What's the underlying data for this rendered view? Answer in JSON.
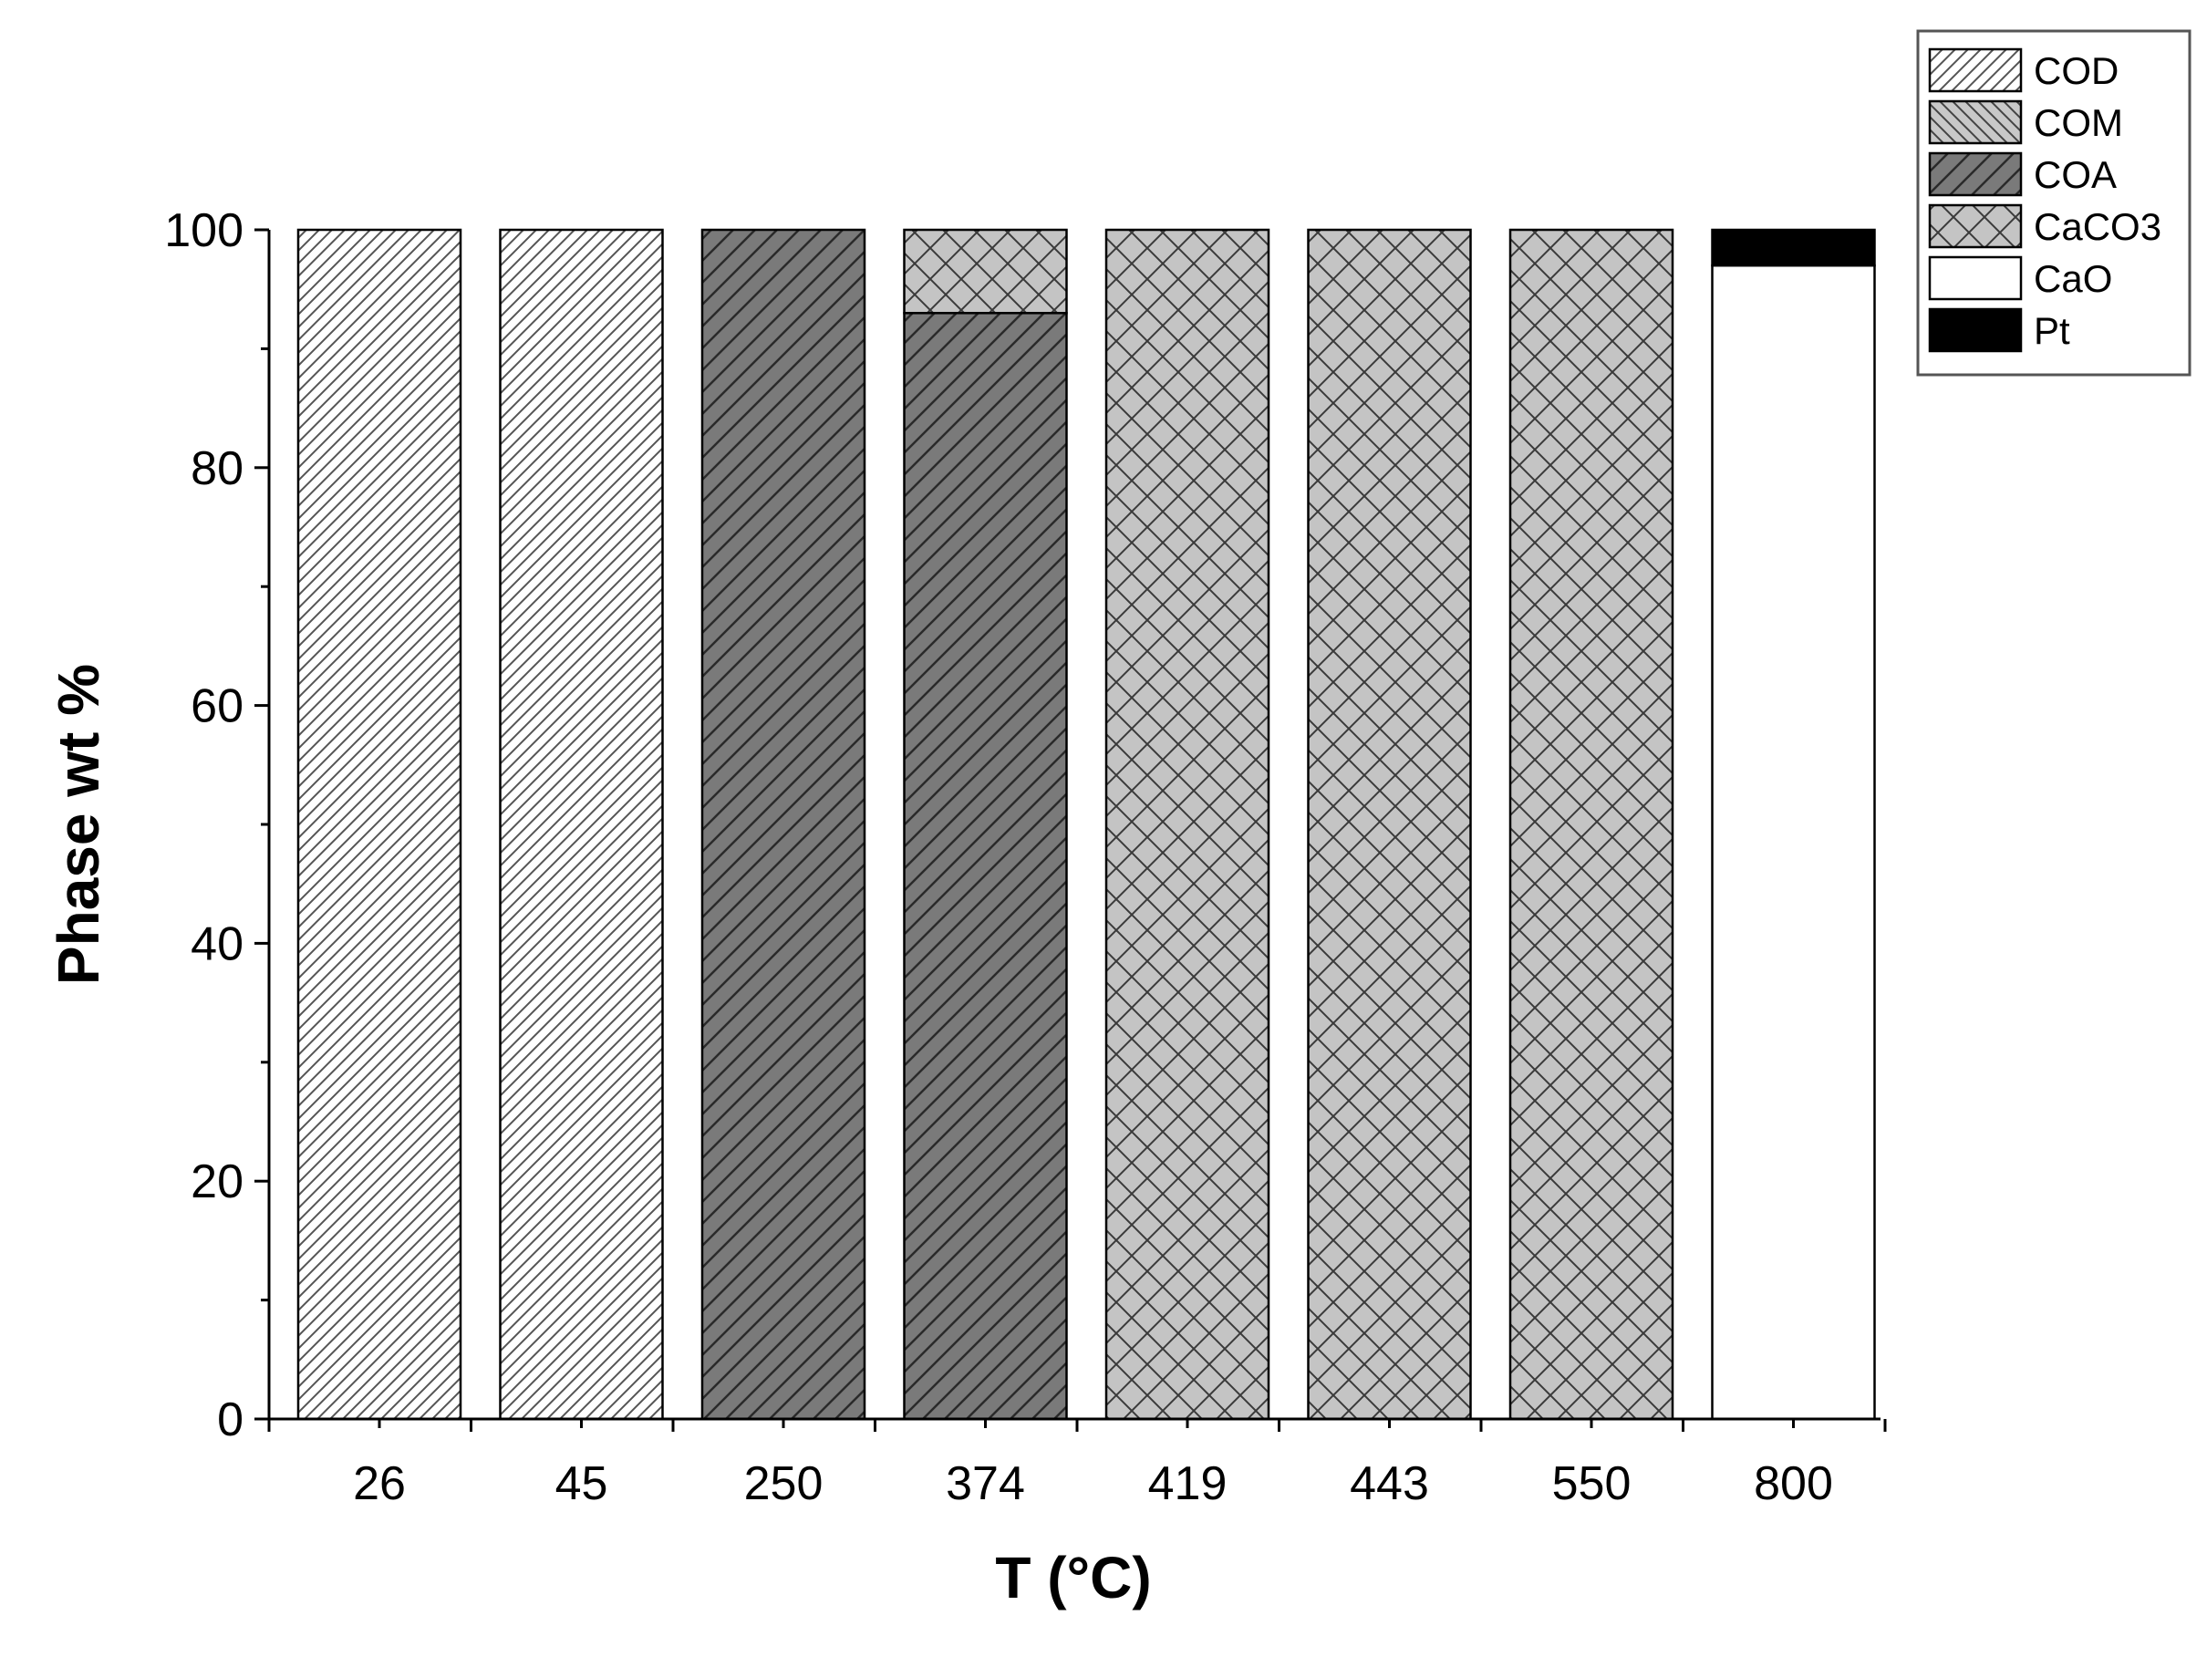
{
  "chart_data": {
    "type": "bar",
    "stacked": true,
    "title": "",
    "xlabel": "T (°C)",
    "ylabel": "Phase wt %",
    "ylim": [
      0,
      100
    ],
    "y_ticks": [
      0,
      20,
      40,
      60,
      80,
      100
    ],
    "categories": [
      "26",
      "45",
      "250",
      "374",
      "419",
      "443",
      "550",
      "800"
    ],
    "series": [
      {
        "name": "COD",
        "pattern": "diag-fwd-light",
        "fill": "#ffffff",
        "values": [
          100,
          100,
          0,
          0,
          0,
          0,
          0,
          0
        ]
      },
      {
        "name": "COM",
        "pattern": "diag-back-grey",
        "fill": "#c8c8c8",
        "values": [
          0,
          0,
          0,
          0,
          0,
          0,
          0,
          0
        ]
      },
      {
        "name": "COA",
        "pattern": "diag-fwd-dark",
        "fill": "#7a7a7a",
        "values": [
          0,
          0,
          100,
          93,
          0,
          0,
          0,
          0
        ]
      },
      {
        "name": "CaCO3",
        "pattern": "crosshatch-grey",
        "fill": "#c4c4c4",
        "values": [
          0,
          0,
          0,
          7,
          100,
          100,
          100,
          0
        ]
      },
      {
        "name": "CaO",
        "pattern": "solid-white",
        "fill": "#ffffff",
        "values": [
          0,
          0,
          0,
          0,
          0,
          0,
          0,
          97
        ]
      },
      {
        "name": "Pt",
        "pattern": "solid-black",
        "fill": "#000000",
        "values": [
          0,
          0,
          0,
          0,
          0,
          0,
          0,
          3
        ]
      }
    ],
    "grid": false,
    "legend_position": "top-right"
  }
}
